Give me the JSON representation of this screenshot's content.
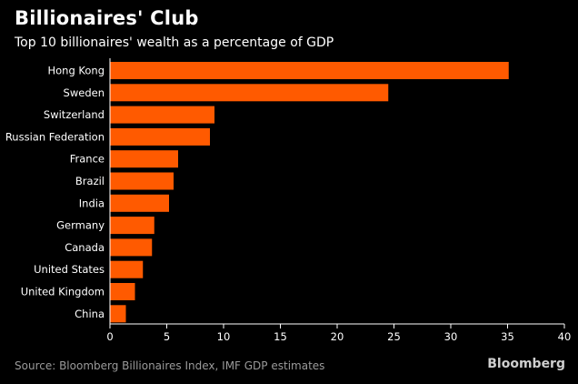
{
  "header": {
    "title": "Billionaires' Club",
    "subtitle": "Top 10 billionaires' wealth as a percentage of GDP"
  },
  "footer": {
    "source": "Source: Bloomberg Billionaires Index, IMF GDP estimates",
    "brand": "Bloomberg"
  },
  "colors": {
    "bar": "#ff5a00",
    "background": "#000000",
    "axis": "#ffffff"
  },
  "chart_data": {
    "type": "bar",
    "orientation": "horizontal",
    "title": "Billionaires' Club",
    "subtitle": "Top 10 billionaires' wealth as a percentage of GDP",
    "categories": [
      "Hong Kong",
      "Sweden",
      "Switzerland",
      "Russian Federation",
      "France",
      "Brazil",
      "India",
      "Germany",
      "Canada",
      "United States",
      "United Kingdom",
      "China"
    ],
    "values": [
      35.1,
      24.5,
      9.2,
      8.8,
      6.0,
      5.6,
      5.2,
      3.9,
      3.7,
      2.9,
      2.2,
      1.4
    ],
    "xlim": [
      0,
      40
    ],
    "xticks": [
      0,
      5,
      10,
      15,
      20,
      25,
      30,
      35,
      40
    ],
    "xlabel": "",
    "ylabel": "",
    "grid": false,
    "legend": "none"
  }
}
